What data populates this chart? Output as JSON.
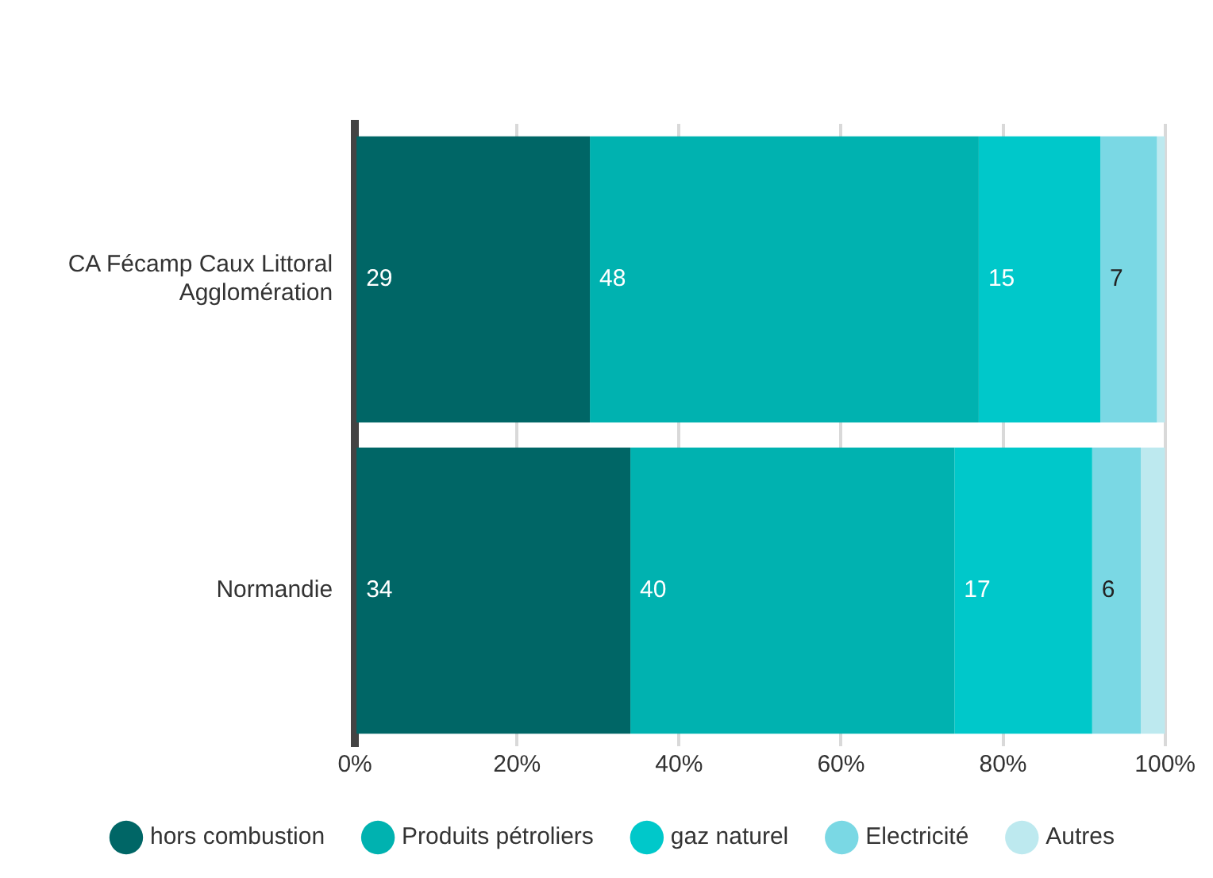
{
  "chart_data": {
    "type": "bar",
    "orientation": "horizontal",
    "stacked": true,
    "categories": [
      "CA Fécamp Caux Littoral Agglomération",
      "Normandie"
    ],
    "series": [
      {
        "name": "hors combustion",
        "color": "#006666",
        "values": [
          29,
          34
        ],
        "value_labels": [
          "29",
          "34"
        ]
      },
      {
        "name": "Produits pétroliers",
        "color": "#00b2b0",
        "values": [
          48,
          40
        ],
        "value_labels": [
          "48",
          "40"
        ]
      },
      {
        "name": "gaz naturel",
        "color": "#00c8ca",
        "values": [
          15,
          17
        ],
        "value_labels": [
          "15",
          "17"
        ]
      },
      {
        "name": "Electricité",
        "color": "#7ad8e4",
        "values": [
          7,
          6
        ],
        "value_labels": [
          "7",
          "6"
        ]
      },
      {
        "name": "Autres",
        "color": "#bde9ef",
        "values": [
          1,
          3
        ],
        "value_labels": [
          null,
          null
        ]
      }
    ],
    "xlim": [
      0,
      100
    ],
    "xticks": [
      {
        "value": 0,
        "label": "0%"
      },
      {
        "value": 20,
        "label": "20%"
      },
      {
        "value": 40,
        "label": "40%"
      },
      {
        "value": 60,
        "label": "60%"
      },
      {
        "value": 80,
        "label": "80%"
      },
      {
        "value": 100,
        "label": "100%"
      }
    ],
    "grid": "x",
    "legend": "bottom"
  }
}
